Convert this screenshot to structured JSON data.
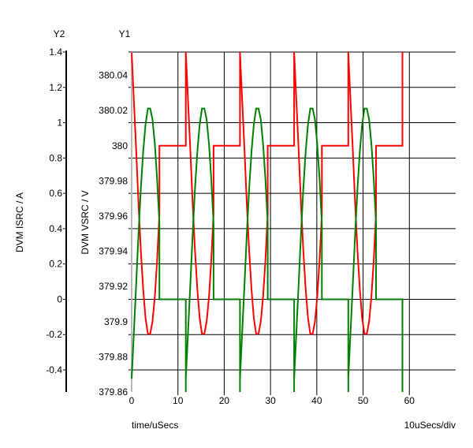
{
  "chart_data": {
    "type": "line",
    "xlabel": "time/uSecs",
    "x_scale_label": "10uSecs/div",
    "xlim": [
      0,
      70
    ],
    "x_ticks": [
      "0",
      "10",
      "20",
      "30",
      "40",
      "50",
      "60"
    ],
    "y1": {
      "axis_name": "Y1",
      "label": "DVM VSRC / V",
      "ylim": [
        379.86,
        380.0533
      ],
      "ticks": [
        "380.04",
        "380.02",
        "380",
        "379.98",
        "379.96",
        "379.94",
        "379.92",
        "379.9",
        "379.88",
        "379.86"
      ]
    },
    "y2": {
      "axis_name": "Y2",
      "label": "DVM ISRC / A",
      "ylim": [
        -0.525,
        1.4
      ],
      "ticks": [
        "1.4",
        "1.2",
        "1",
        "0.8",
        "0.6",
        "0.4",
        "0.2",
        "0",
        "-0.2",
        "-0.4"
      ]
    },
    "grid": true,
    "cycle_starts": [
      0,
      11.7,
      23.4,
      35.1,
      46.8
    ],
    "end_time": 58.5,
    "series": [
      {
        "name": "DVM VSRC",
        "axis": "y1",
        "color": "#ff0000",
        "cycle_template": [
          [
            0,
            380.053
          ],
          [
            0.5,
            380.025
          ],
          [
            1,
            379.996
          ],
          [
            1.5,
            379.966
          ],
          [
            2,
            379.94
          ],
          [
            2.5,
            379.918
          ],
          [
            3,
            379.902
          ],
          [
            3.5,
            379.893
          ],
          [
            4,
            379.893
          ],
          [
            4.5,
            379.9
          ],
          [
            5,
            379.914
          ],
          [
            5.5,
            379.935
          ],
          [
            6,
            379.961
          ],
          [
            6,
            380.0
          ],
          [
            11.7,
            380.0
          ]
        ],
        "spike_to": "top"
      },
      {
        "name": "DVM ISRC",
        "axis": "y2",
        "color": "#008000",
        "cycle_template": [
          [
            0,
            -0.45
          ],
          [
            0.5,
            -0.18
          ],
          [
            1,
            0.1
          ],
          [
            1.5,
            0.38
          ],
          [
            2,
            0.63
          ],
          [
            2.5,
            0.84
          ],
          [
            3,
            0.99
          ],
          [
            3.5,
            1.08
          ],
          [
            4,
            1.08
          ],
          [
            4.5,
            1.02
          ],
          [
            5,
            0.88
          ],
          [
            5.5,
            0.68
          ],
          [
            6,
            0.43
          ],
          [
            6,
            0.0
          ],
          [
            11.7,
            0.0
          ]
        ],
        "spike_to": "bottom"
      }
    ]
  }
}
